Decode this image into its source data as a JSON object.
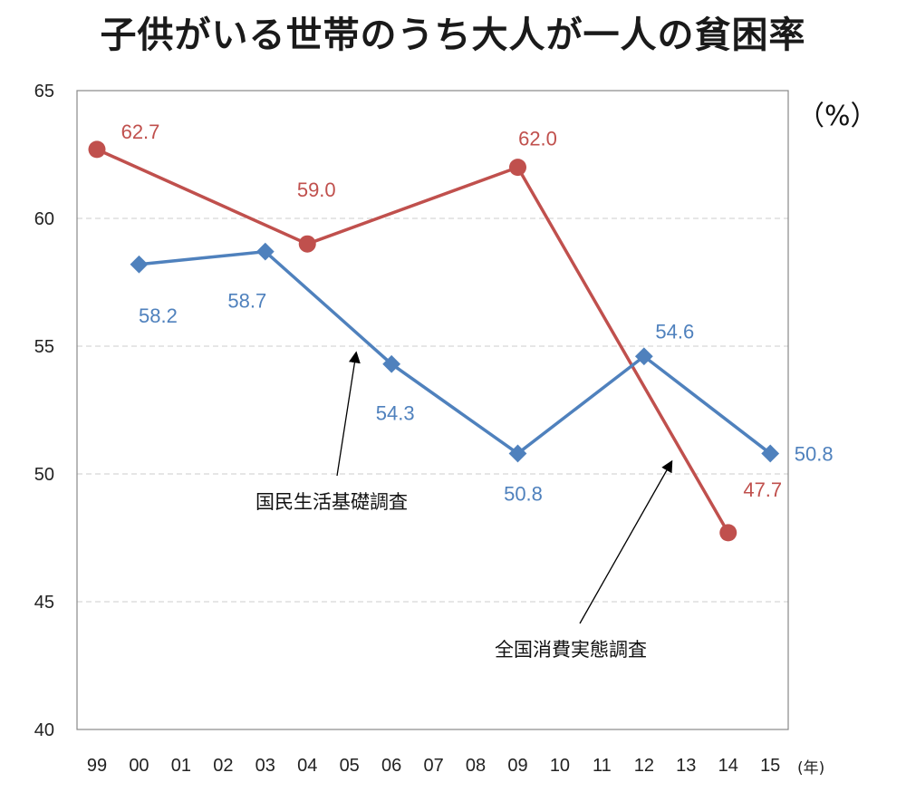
{
  "chart_data": {
    "type": "line",
    "title": "子供がいる世帯のうち大人が一人の貧困率",
    "ylabel": "（%）",
    "xlabel": "(年)",
    "categories": [
      "99",
      "00",
      "01",
      "02",
      "03",
      "04",
      "05",
      "06",
      "07",
      "08",
      "09",
      "10",
      "11",
      "12",
      "13",
      "14",
      "15"
    ],
    "ylim": [
      40,
      65
    ],
    "yticks": [
      40,
      45,
      50,
      55,
      60,
      65
    ],
    "grid": "horizontal dashed",
    "series": [
      {
        "name": "全国消費実態調査",
        "color": "#c0504d",
        "marker": "circle",
        "points": [
          [
            "99",
            62.7
          ],
          [
            "04",
            59.0
          ],
          [
            "09",
            62.0
          ],
          [
            "14",
            47.7
          ]
        ]
      },
      {
        "name": "国民生活基礎調査",
        "color": "#4f81bd",
        "marker": "diamond",
        "points": [
          [
            "00",
            58.2
          ],
          [
            "03",
            58.7
          ],
          [
            "06",
            54.3
          ],
          [
            "09",
            50.8
          ],
          [
            "12",
            54.6
          ],
          [
            "15",
            50.8
          ]
        ]
      }
    ],
    "annotations": [
      "国民生活基礎調査",
      "全国消費実態調査"
    ]
  }
}
